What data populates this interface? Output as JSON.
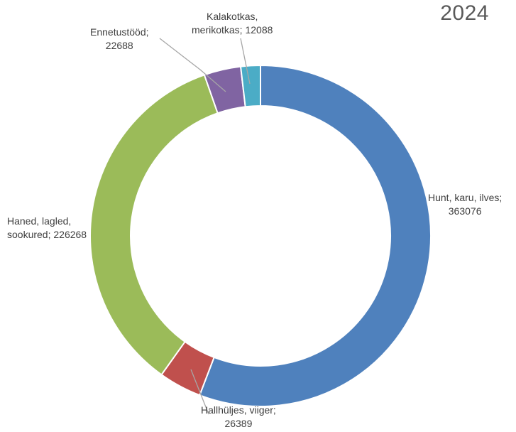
{
  "chart_data": {
    "type": "pie",
    "variant": "donut",
    "title": "2024",
    "slices": [
      {
        "label": "Hunt, karu, ilves",
        "value": 363076,
        "color": "#4f81bd",
        "label_lines": [
          "Hunt, karu, ilves;",
          "363076"
        ]
      },
      {
        "label": "Hallhüljes, viiger",
        "value": 26389,
        "color": "#c0504d",
        "label_lines": [
          "Hallhüljes, viiger;",
          "26389"
        ]
      },
      {
        "label": "Haned, lagled, sookured",
        "value": 226268,
        "color": "#9bbb59",
        "label_lines": [
          "Haned, lagled,",
          "sookured; 226268"
        ]
      },
      {
        "label": "Ennetustööd",
        "value": 22688,
        "color": "#8064a2",
        "label_lines": [
          "Ennetustööd;",
          "22688"
        ]
      },
      {
        "label": "Kalakotkas, merikotkas",
        "value": 12088,
        "color": "#4bacc6",
        "label_lines": [
          "Kalakotkas,",
          "merikotkas; 12088"
        ]
      }
    ],
    "leader_line_color": "#a6a6a6"
  }
}
